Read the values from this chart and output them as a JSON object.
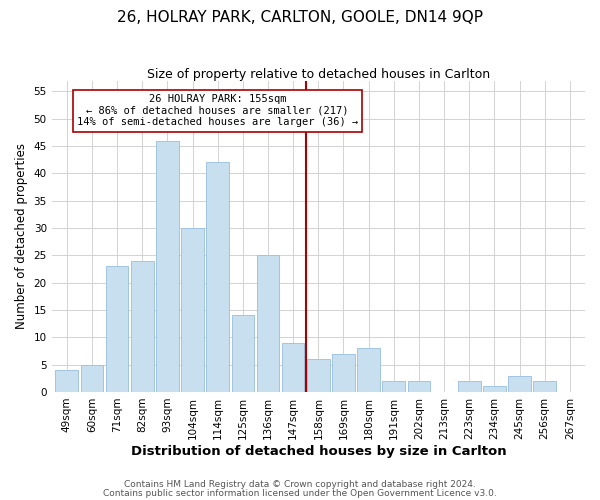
{
  "title": "26, HOLRAY PARK, CARLTON, GOOLE, DN14 9QP",
  "subtitle": "Size of property relative to detached houses in Carlton",
  "xlabel": "Distribution of detached houses by size in Carlton",
  "ylabel": "Number of detached properties",
  "categories": [
    "49sqm",
    "60sqm",
    "71sqm",
    "82sqm",
    "93sqm",
    "104sqm",
    "114sqm",
    "125sqm",
    "136sqm",
    "147sqm",
    "158sqm",
    "169sqm",
    "180sqm",
    "191sqm",
    "202sqm",
    "213sqm",
    "223sqm",
    "234sqm",
    "245sqm",
    "256sqm",
    "267sqm"
  ],
  "values": [
    4,
    5,
    23,
    24,
    46,
    30,
    42,
    14,
    25,
    9,
    6,
    7,
    8,
    2,
    2,
    0,
    2,
    1,
    3,
    2,
    0
  ],
  "bar_color": "#c8dff0",
  "bar_edge_color": "#a0c4e0",
  "reference_line_index": 10,
  "reference_line_color": "#aa0000",
  "annotation_text": "26 HOLRAY PARK: 155sqm\n← 86% of detached houses are smaller (217)\n14% of semi-detached houses are larger (36) →",
  "annotation_box_edge_color": "#aa0000",
  "annotation_box_face_color": "#ffffff",
  "ylim": [
    0,
    57
  ],
  "yticks": [
    0,
    5,
    10,
    15,
    20,
    25,
    30,
    35,
    40,
    45,
    50,
    55
  ],
  "footer1": "Contains HM Land Registry data © Crown copyright and database right 2024.",
  "footer2": "Contains public sector information licensed under the Open Government Licence v3.0.",
  "title_fontsize": 11,
  "subtitle_fontsize": 9,
  "xlabel_fontsize": 9.5,
  "ylabel_fontsize": 8.5,
  "tick_fontsize": 7.5,
  "annotation_fontsize": 7.5,
  "footer_fontsize": 6.5,
  "grid_color": "#cccccc",
  "bg_color": "#ffffff",
  "plot_bg_color": "#ffffff"
}
